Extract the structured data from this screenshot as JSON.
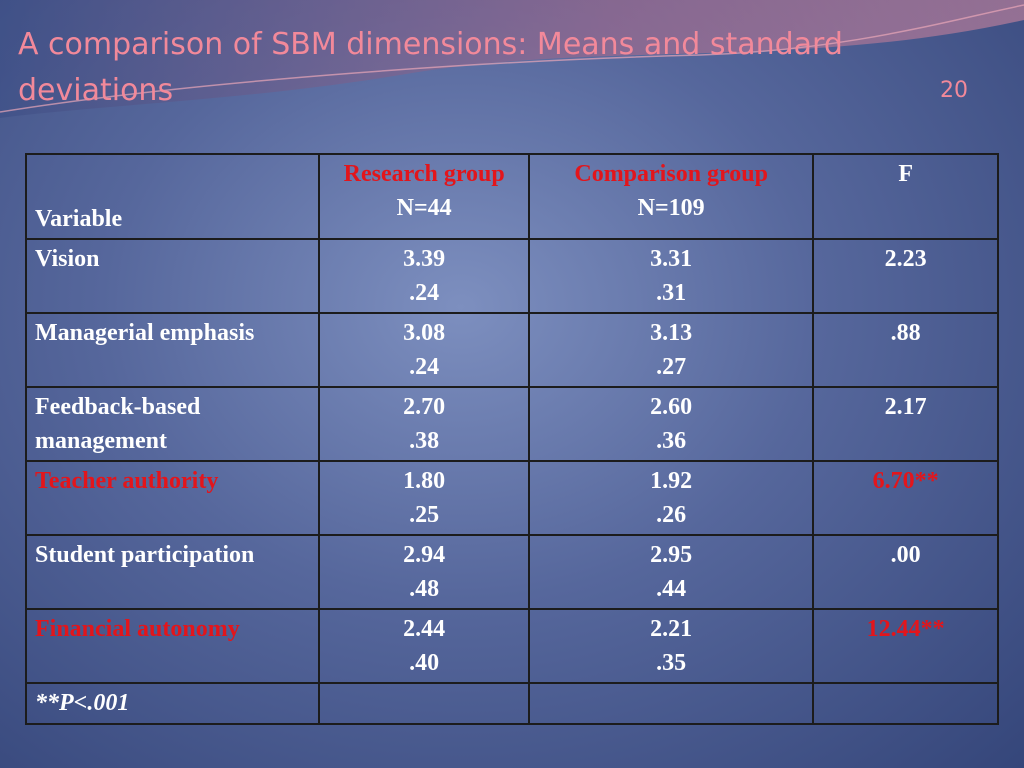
{
  "header": {
    "title": "A comparison of SBM dimensions: Means and standard deviations",
    "page_number": "20"
  },
  "table": {
    "columns": [
      {
        "label": "Variable"
      },
      {
        "label": "Research group",
        "sub": "N=44"
      },
      {
        "label": "Comparison group",
        "sub": "N=109"
      },
      {
        "label": "F"
      }
    ],
    "rows": [
      {
        "variable": "Vision",
        "research": [
          "3.39",
          ".24"
        ],
        "comparison": [
          "3.31",
          ".31"
        ],
        "f": "2.23",
        "highlight": false
      },
      {
        "variable": "Managerial emphasis",
        "research": [
          "3.08",
          ".24"
        ],
        "comparison": [
          "3.13",
          ".27"
        ],
        "f": ".88",
        "highlight": false
      },
      {
        "variable": "Feedback-based management",
        "research": [
          "2.70",
          ".38"
        ],
        "comparison": [
          "2.60",
          ".36"
        ],
        "f": "2.17",
        "highlight": false
      },
      {
        "variable": "Teacher authority",
        "research": [
          "1.80",
          ".25"
        ],
        "comparison": [
          "1.92",
          ".26"
        ],
        "f": "6.70**",
        "highlight": true
      },
      {
        "variable": "Student participation",
        "research": [
          "2.94",
          ".48"
        ],
        "comparison": [
          "2.95",
          ".44"
        ],
        "f": ".00",
        "highlight": false
      },
      {
        "variable": "Financial autonomy",
        "research": [
          "2.44",
          ".40"
        ],
        "comparison": [
          "2.21",
          ".35"
        ],
        "f": "12.44**",
        "highlight": true
      }
    ],
    "footnote": "**P<.001"
  }
}
